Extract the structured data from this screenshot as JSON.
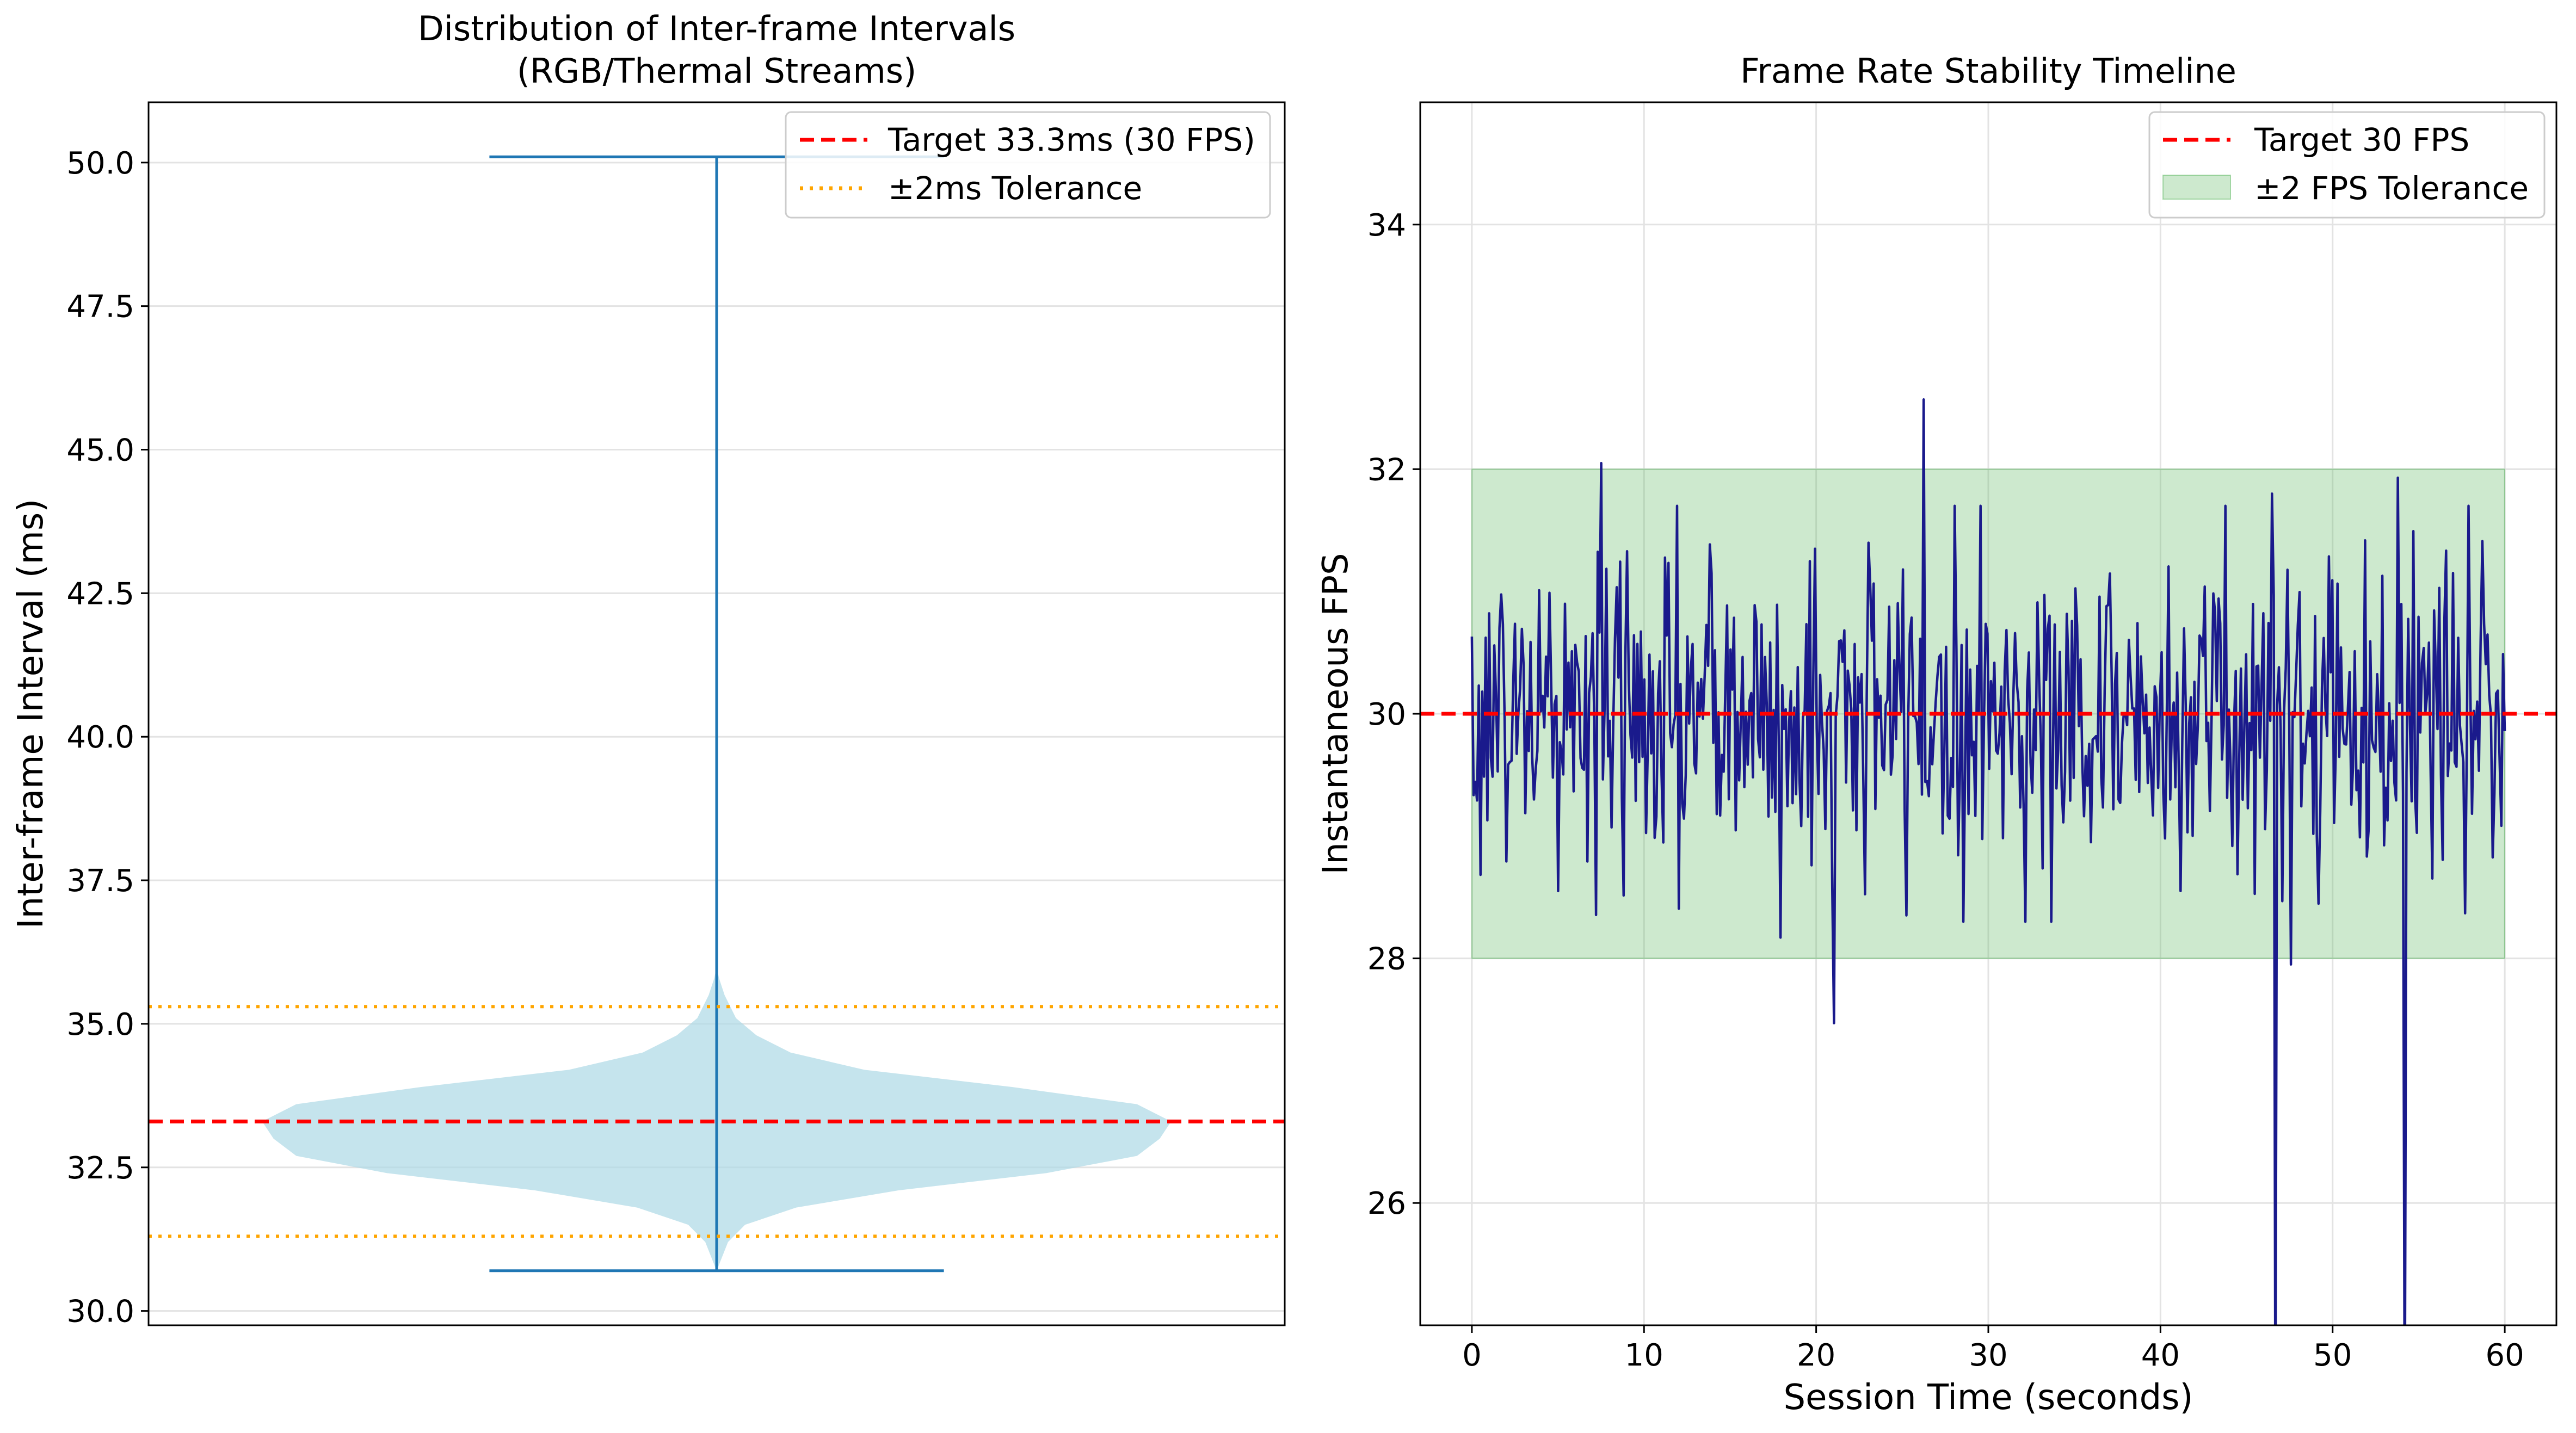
{
  "chart_data": [
    {
      "type": "violin",
      "title": "Distribution of Inter-frame Intervals\n(RGB/Thermal Streams)",
      "title_lines": [
        "Distribution of Inter-frame Intervals",
        "(RGB/Thermal Streams)"
      ],
      "xlabel": "",
      "ylabel": "Inter-frame Interval (ms)",
      "ylim": [
        29.75,
        51.05
      ],
      "xlim": [
        0.5,
        1.5
      ],
      "grid": "y",
      "yticks": [
        30.0,
        32.5,
        35.0,
        37.5,
        40.0,
        42.5,
        45.0,
        47.5,
        50.0
      ],
      "ytick_labels": [
        "30.0",
        "32.5",
        "35.0",
        "37.5",
        "40.0",
        "42.5",
        "45.0",
        "47.5",
        "50.0"
      ],
      "violin": {
        "position": 1,
        "min": 30.7,
        "max": 50.1,
        "cap_half_width": 0.2,
        "profile": [
          {
            "y": 30.7,
            "w": 0.0
          },
          {
            "y": 31.2,
            "w": 0.01
          },
          {
            "y": 31.5,
            "w": 0.025
          },
          {
            "y": 31.8,
            "w": 0.07
          },
          {
            "y": 32.1,
            "w": 0.16
          },
          {
            "y": 32.4,
            "w": 0.29
          },
          {
            "y": 32.7,
            "w": 0.37
          },
          {
            "y": 33.0,
            "w": 0.39
          },
          {
            "y": 33.3,
            "w": 0.4
          },
          {
            "y": 33.6,
            "w": 0.37
          },
          {
            "y": 33.9,
            "w": 0.26
          },
          {
            "y": 34.2,
            "w": 0.13
          },
          {
            "y": 34.5,
            "w": 0.065
          },
          {
            "y": 34.8,
            "w": 0.035
          },
          {
            "y": 35.1,
            "w": 0.017
          },
          {
            "y": 35.5,
            "w": 0.007
          },
          {
            "y": 35.8,
            "w": 0.002
          },
          {
            "y": 36.0,
            "w": 0.0
          }
        ],
        "fill_color": "#add8e6",
        "line_color": "#1f77b4"
      },
      "reference_lines": [
        {
          "label": "Target 33.3ms (30 FPS)",
          "y": 33.3,
          "style": "dashed",
          "color": "#ff0000"
        },
        {
          "label": "±2ms Tolerance",
          "y": 31.3,
          "style": "dotted",
          "color": "#ffa500"
        },
        {
          "y": 35.3,
          "style": "dotted",
          "color": "#ffa500"
        }
      ],
      "legend": {
        "placement": "upper right",
        "entries": [
          {
            "label": "Target 33.3ms (30 FPS)",
            "style": "dashed",
            "color": "#ff0000"
          },
          {
            "label": "±2ms Tolerance",
            "style": "dotted",
            "color": "#ffa500"
          }
        ]
      }
    },
    {
      "type": "line",
      "title": "Frame Rate Stability Timeline",
      "xlabel": "Session Time (seconds)",
      "ylabel": "Instantaneous FPS",
      "xlim": [
        -3,
        63
      ],
      "ylim": [
        25,
        35
      ],
      "grid": true,
      "xticks": [
        0,
        10,
        20,
        30,
        40,
        50,
        60
      ],
      "xtick_labels": [
        "0",
        "10",
        "20",
        "30",
        "40",
        "50",
        "60"
      ],
      "yticks": [
        26,
        28,
        30,
        32,
        34
      ],
      "ytick_labels": [
        "26",
        "28",
        "30",
        "32",
        "34"
      ],
      "series": [
        {
          "color": "#1a1a8c",
          "x_start": 0,
          "x_end": 60,
          "n_points": 600,
          "mean": 30.0,
          "std": 0.68,
          "notable_points": [
            {
              "x": 7.5,
              "y": 32.05
            },
            {
              "x": 26.2,
              "y": 32.57
            },
            {
              "x": 21.0,
              "y": 27.47
            },
            {
              "x": 17.9,
              "y": 28.17
            },
            {
              "x": 47.6,
              "y": 27.95
            },
            {
              "x": 53.8,
              "y": 31.93
            },
            {
              "x": 46.5,
              "y": 31.8
            },
            {
              "x": 46.7,
              "y": 24.0
            },
            {
              "x": 54.2,
              "y": 24.0
            }
          ]
        }
      ],
      "reference_lines": [
        {
          "label": "Target 30 FPS",
          "y": 30,
          "style": "dashed",
          "color": "#ff0000"
        }
      ],
      "bands": [
        {
          "label": "±2 FPS Tolerance",
          "x": [
            0,
            60
          ],
          "y": [
            28,
            32
          ],
          "color": "#4caf50",
          "opacity": 0.28
        }
      ],
      "legend": {
        "placement": "upper right",
        "entries": [
          {
            "label": "Target 30 FPS",
            "style": "dashed",
            "color": "#ff0000"
          },
          {
            "label": "±2 FPS Tolerance",
            "style": "patch",
            "color": "#4caf50"
          }
        ]
      }
    }
  ]
}
